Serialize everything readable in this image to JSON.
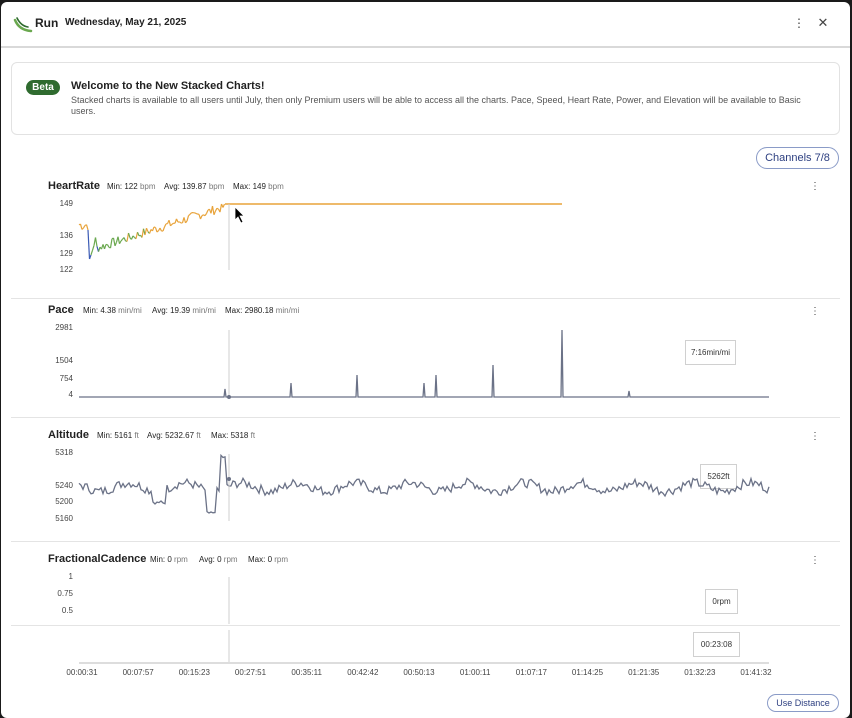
{
  "header": {
    "title": "Run",
    "date": "Wednesday, May 21, 2025",
    "more_icon": "⋮",
    "close_icon": "✕"
  },
  "beta": {
    "badge": "Beta",
    "title": "Welcome to the New Stacked Charts!",
    "body": "Stacked charts is available to all users until July, then only Premium users will be able to access all the charts. Pace, Speed, Heart Rate, Power, and Elevation will be available to Basic users."
  },
  "channels_label": "Channels 7/8",
  "use_distance_label": "Use Distance",
  "more_icon": "⋮",
  "channels": [
    {
      "name": "HeartRate",
      "min_label": "Min:",
      "min": "122",
      "avg_label": "Avg:",
      "avg": "139.87",
      "max_label": "Max:",
      "max": "149",
      "unit": "bpm",
      "ticks": [
        "149",
        "136",
        "129",
        "122"
      ]
    },
    {
      "name": "Pace",
      "min_label": "Min:",
      "min": "4.38",
      "avg_label": "Avg:",
      "avg": "19.39",
      "max_label": "Max:",
      "max": "2980.18",
      "unit": "min/mi",
      "ticks": [
        "2981",
        "1504",
        "754",
        "4"
      ],
      "tooltip": "7:16min/mi"
    },
    {
      "name": "Altitude",
      "min_label": "Min:",
      "min": "5161",
      "avg_label": "Avg:",
      "avg": "5232.67",
      "max_label": "Max:",
      "max": "5318",
      "unit": "ft",
      "ticks": [
        "5318",
        "5240",
        "5200",
        "5160"
      ],
      "tooltip": "5262ft"
    },
    {
      "name": "FractionalCadence",
      "min_label": "Min:",
      "min": "0",
      "avg_label": "Avg:",
      "avg": "0",
      "max_label": "Max:",
      "max": "0",
      "unit": "rpm",
      "ticks": [
        "1",
        "0.75",
        "0.5"
      ],
      "tooltip": "0rpm"
    }
  ],
  "time_tooltip": "00:23:08",
  "x_ticks": [
    "00:00:31",
    "00:07:57",
    "00:15:23",
    "00:27:51",
    "00:35:11",
    "00:42:42",
    "00:50:13",
    "01:00:11",
    "01:07:17",
    "01:14:25",
    "01:21:35",
    "01:32:23",
    "01:41:32"
  ],
  "colors": {
    "accent": "#2d3f80",
    "beta": "#2f6b2f",
    "series": "#6b7287",
    "hr_low": "#3b5bb5",
    "hr_mid": "#6aa84f",
    "hr_high": "#e8a33a"
  }
}
